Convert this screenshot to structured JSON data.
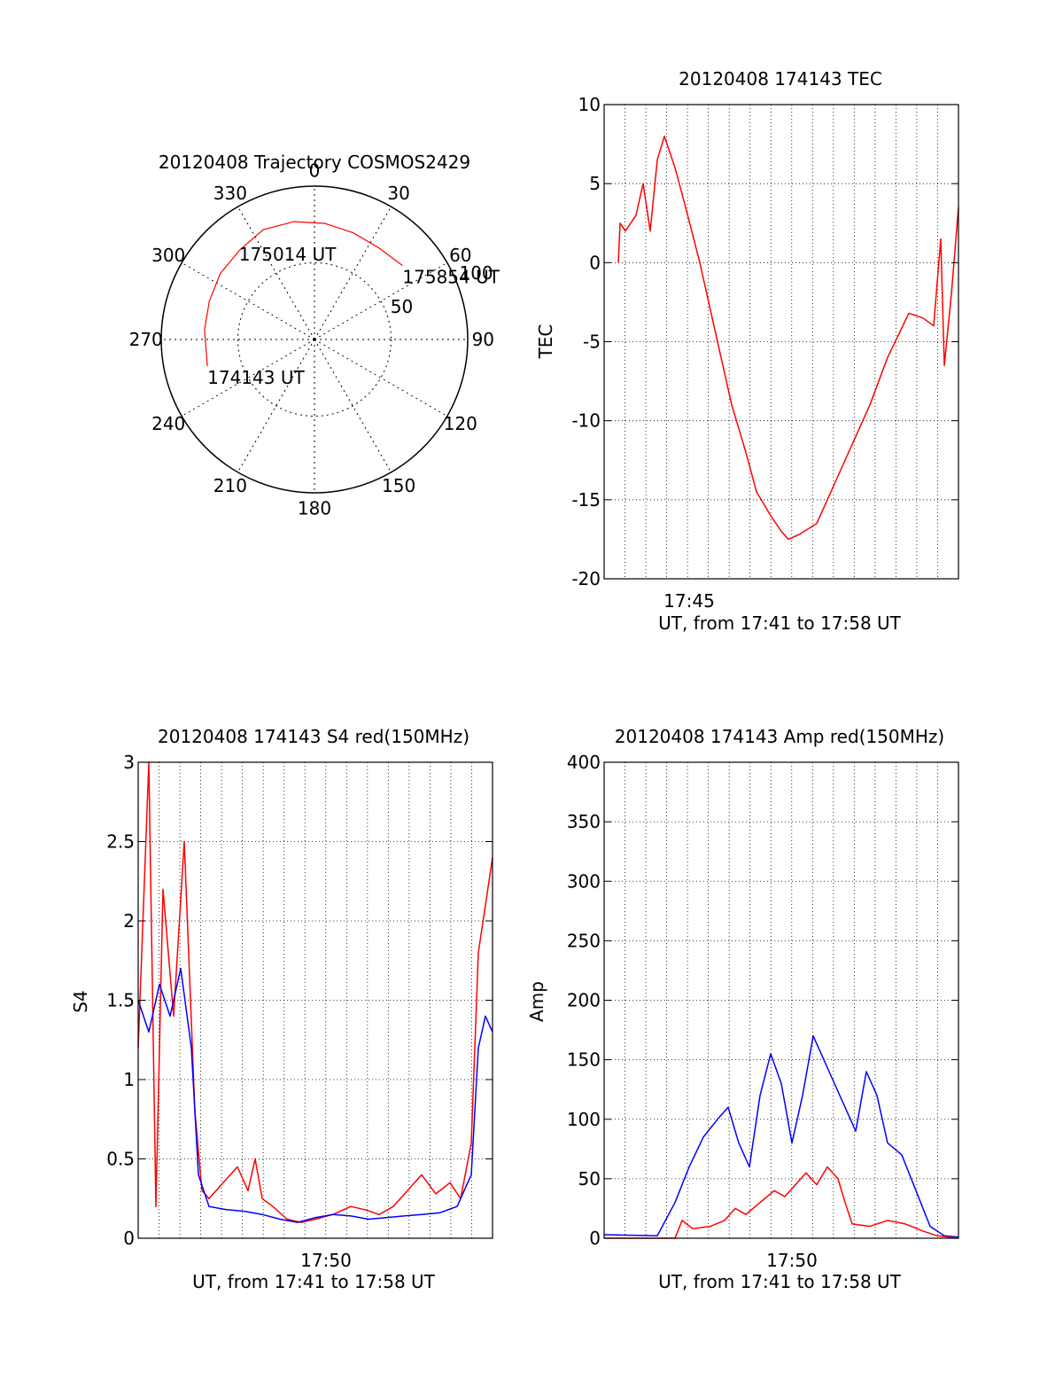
{
  "chart_data": [
    {
      "type": "polar",
      "title": "20120408 Trajectory COSMOS2429",
      "azimuth_ticks": [
        0,
        30,
        60,
        90,
        120,
        150,
        180,
        210,
        240,
        270,
        300,
        330
      ],
      "radius_ticks": [
        50,
        100
      ],
      "points": [
        {
          "label": "174143 UT",
          "az": 256,
          "r": 72
        },
        {
          "label": "175014 UT",
          "az": 322,
          "r": 80
        },
        {
          "label": "175854 UT",
          "az": 50,
          "r": 75
        }
      ],
      "series": [
        {
          "color": "#ff0000",
          "points": [
            [
              256,
              72
            ],
            [
              275,
              72
            ],
            [
              290,
              73
            ],
            [
              305,
              75
            ],
            [
              320,
              76
            ],
            [
              335,
              79
            ],
            [
              350,
              78
            ],
            [
              5,
              76
            ],
            [
              20,
              74
            ],
            [
              35,
              73
            ],
            [
              50,
              75
            ]
          ]
        }
      ]
    },
    {
      "type": "line",
      "title": "20120408 174143 TEC",
      "xlabel": "UT, from 17:41 to 17:58 UT",
      "ylabel": "TEC",
      "xlim": [
        0,
        1
      ],
      "ylim": [
        -20,
        10
      ],
      "yticks": [
        10,
        5,
        0,
        -5,
        -10,
        -15,
        -20
      ],
      "xtick_labels": [
        {
          "x": 0.24,
          "label": "17:45"
        }
      ],
      "grid": true,
      "series": [
        {
          "color": "#ff0000",
          "points": [
            [
              0.04,
              0
            ],
            [
              0.045,
              2.5
            ],
            [
              0.06,
              2
            ],
            [
              0.075,
              2.5
            ],
            [
              0.09,
              3
            ],
            [
              0.11,
              5
            ],
            [
              0.13,
              2
            ],
            [
              0.15,
              6.5
            ],
            [
              0.17,
              8
            ],
            [
              0.2,
              6
            ],
            [
              0.23,
              3.5
            ],
            [
              0.27,
              0
            ],
            [
              0.3,
              -3
            ],
            [
              0.33,
              -6
            ],
            [
              0.36,
              -9
            ],
            [
              0.4,
              -12
            ],
            [
              0.43,
              -14.5
            ],
            [
              0.47,
              -16
            ],
            [
              0.5,
              -17
            ],
            [
              0.52,
              -17.5
            ],
            [
              0.55,
              -17.2
            ],
            [
              0.6,
              -16.5
            ],
            [
              0.65,
              -14
            ],
            [
              0.7,
              -11.5
            ],
            [
              0.75,
              -9
            ],
            [
              0.8,
              -6
            ],
            [
              0.86,
              -3.2
            ],
            [
              0.9,
              -3.5
            ],
            [
              0.93,
              -4
            ],
            [
              0.95,
              1.5
            ],
            [
              0.96,
              -6.5
            ],
            [
              0.98,
              -2
            ],
            [
              1.0,
              3.5
            ]
          ]
        }
      ]
    },
    {
      "type": "line",
      "title": "20120408 174143 S4 red(150MHz)",
      "xlabel": "UT, from 17:41 to 17:58 UT",
      "ylabel": "S4",
      "xlim": [
        0,
        1
      ],
      "ylim": [
        0,
        3
      ],
      "yticks": [
        0,
        0.5,
        1,
        1.5,
        2,
        2.5,
        3
      ],
      "ytick_labels": [
        "0",
        "0.5",
        "1",
        "1.5",
        "2",
        "2.5",
        "3"
      ],
      "xtick_labels": [
        {
          "x": 0.53,
          "label": "17:50"
        }
      ],
      "grid": true,
      "series": [
        {
          "color": "#ff0000",
          "points": [
            [
              0,
              1.2
            ],
            [
              0.03,
              3
            ],
            [
              0.05,
              0.2
            ],
            [
              0.07,
              2.2
            ],
            [
              0.1,
              1.4
            ],
            [
              0.13,
              2.5
            ],
            [
              0.16,
              0.8
            ],
            [
              0.18,
              0.3
            ],
            [
              0.2,
              0.25
            ],
            [
              0.24,
              0.35
            ],
            [
              0.28,
              0.45
            ],
            [
              0.31,
              0.3
            ],
            [
              0.33,
              0.5
            ],
            [
              0.35,
              0.25
            ],
            [
              0.38,
              0.2
            ],
            [
              0.42,
              0.12
            ],
            [
              0.46,
              0.1
            ],
            [
              0.5,
              0.12
            ],
            [
              0.55,
              0.15
            ],
            [
              0.6,
              0.2
            ],
            [
              0.64,
              0.18
            ],
            [
              0.68,
              0.15
            ],
            [
              0.72,
              0.2
            ],
            [
              0.76,
              0.3
            ],
            [
              0.8,
              0.4
            ],
            [
              0.84,
              0.28
            ],
            [
              0.88,
              0.35
            ],
            [
              0.91,
              0.25
            ],
            [
              0.94,
              0.6
            ],
            [
              0.96,
              1.8
            ],
            [
              1.0,
              2.4
            ]
          ]
        },
        {
          "color": "#0000ff",
          "points": [
            [
              0,
              1.5
            ],
            [
              0.03,
              1.3
            ],
            [
              0.06,
              1.6
            ],
            [
              0.09,
              1.4
            ],
            [
              0.12,
              1.7
            ],
            [
              0.15,
              1.2
            ],
            [
              0.17,
              0.4
            ],
            [
              0.2,
              0.2
            ],
            [
              0.25,
              0.18
            ],
            [
              0.3,
              0.17
            ],
            [
              0.35,
              0.15
            ],
            [
              0.4,
              0.12
            ],
            [
              0.45,
              0.1
            ],
            [
              0.5,
              0.13
            ],
            [
              0.55,
              0.15
            ],
            [
              0.6,
              0.14
            ],
            [
              0.65,
              0.12
            ],
            [
              0.7,
              0.13
            ],
            [
              0.75,
              0.14
            ],
            [
              0.8,
              0.15
            ],
            [
              0.85,
              0.16
            ],
            [
              0.9,
              0.2
            ],
            [
              0.94,
              0.4
            ],
            [
              0.96,
              1.2
            ],
            [
              0.98,
              1.4
            ],
            [
              1.0,
              1.3
            ]
          ]
        }
      ]
    },
    {
      "type": "line",
      "title": "20120408 174143 Amp red(150MHz)",
      "xlabel": "UT, from 17:41 to 17:58 UT",
      "ylabel": "Amp",
      "xlim": [
        0,
        1
      ],
      "ylim": [
        0,
        400
      ],
      "yticks": [
        0,
        50,
        100,
        150,
        200,
        250,
        300,
        350,
        400
      ],
      "xtick_labels": [
        {
          "x": 0.53,
          "label": "17:50"
        }
      ],
      "grid": true,
      "series": [
        {
          "color": "#0000ff",
          "points": [
            [
              0,
              3
            ],
            [
              0.15,
              2
            ],
            [
              0.2,
              30
            ],
            [
              0.24,
              60
            ],
            [
              0.28,
              85
            ],
            [
              0.32,
              100
            ],
            [
              0.35,
              110
            ],
            [
              0.38,
              80
            ],
            [
              0.41,
              60
            ],
            [
              0.44,
              120
            ],
            [
              0.47,
              155
            ],
            [
              0.5,
              130
            ],
            [
              0.53,
              80
            ],
            [
              0.56,
              120
            ],
            [
              0.59,
              170
            ],
            [
              0.62,
              150
            ],
            [
              0.65,
              130
            ],
            [
              0.68,
              110
            ],
            [
              0.71,
              90
            ],
            [
              0.74,
              140
            ],
            [
              0.77,
              120
            ],
            [
              0.8,
              80
            ],
            [
              0.84,
              70
            ],
            [
              0.88,
              40
            ],
            [
              0.92,
              10
            ],
            [
              0.96,
              2
            ],
            [
              1.0,
              1
            ]
          ]
        },
        {
          "color": "#ff0000",
          "points": [
            [
              0,
              0
            ],
            [
              0.2,
              0
            ],
            [
              0.22,
              15
            ],
            [
              0.25,
              8
            ],
            [
              0.3,
              10
            ],
            [
              0.34,
              15
            ],
            [
              0.37,
              25
            ],
            [
              0.4,
              20
            ],
            [
              0.44,
              30
            ],
            [
              0.48,
              40
            ],
            [
              0.51,
              35
            ],
            [
              0.54,
              45
            ],
            [
              0.57,
              55
            ],
            [
              0.6,
              45
            ],
            [
              0.63,
              60
            ],
            [
              0.66,
              50
            ],
            [
              0.68,
              30
            ],
            [
              0.7,
              12
            ],
            [
              0.75,
              10
            ],
            [
              0.8,
              15
            ],
            [
              0.85,
              12
            ],
            [
              0.9,
              6
            ],
            [
              0.94,
              2
            ],
            [
              1.0,
              0
            ]
          ]
        }
      ]
    }
  ]
}
